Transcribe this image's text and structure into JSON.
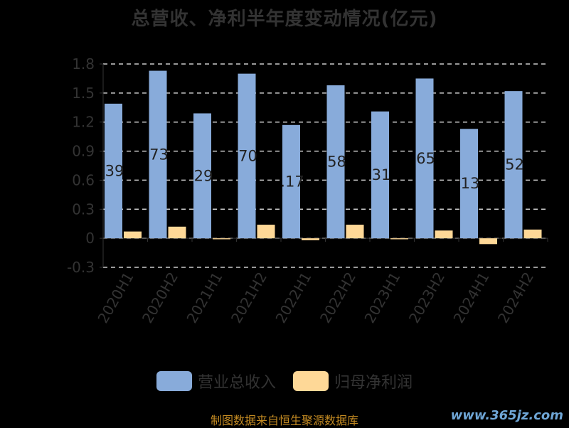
{
  "title": "总营收、净利半年度变动情况(亿元)",
  "source": "制图数据来自恒生聚源数据库",
  "watermark": "www.365jz.com",
  "colors": {
    "revenue": "#88abda",
    "profit": "#fed897",
    "grid": "#cccccc",
    "axis_text": "#333333",
    "background": "#000000"
  },
  "chart_data": {
    "type": "bar",
    "title": "总营收、净利半年度变动情况(亿元)",
    "categories": [
      "2020H1",
      "2020H2",
      "2021H1",
      "2021H2",
      "2022H1",
      "2022H2",
      "2023H1",
      "2023H2",
      "2024H1",
      "2024H2"
    ],
    "series": [
      {
        "name": "营业总收入",
        "values": [
          1.39,
          1.73,
          1.29,
          1.7,
          1.17,
          1.58,
          1.31,
          1.65,
          1.13,
          1.52
        ],
        "labels": [
          "39",
          "73",
          "29",
          "70",
          ".17",
          "58",
          "31",
          "65",
          "13",
          "52"
        ]
      },
      {
        "name": "归母净利润",
        "values": [
          0.07,
          0.12,
          -0.01,
          0.14,
          -0.02,
          0.14,
          -0.01,
          0.08,
          -0.06,
          0.09
        ]
      }
    ],
    "yticks": [
      "1.8",
      "1.5",
      "1.2",
      "0.9",
      "0.6",
      "0.3",
      "0",
      "-0.3"
    ],
    "ytick_values": [
      1.8,
      1.5,
      1.2,
      0.9,
      0.6,
      0.3,
      0,
      -0.3
    ],
    "ylim": [
      -0.3,
      1.8
    ],
    "grid": true,
    "legend_position": "bottom"
  }
}
